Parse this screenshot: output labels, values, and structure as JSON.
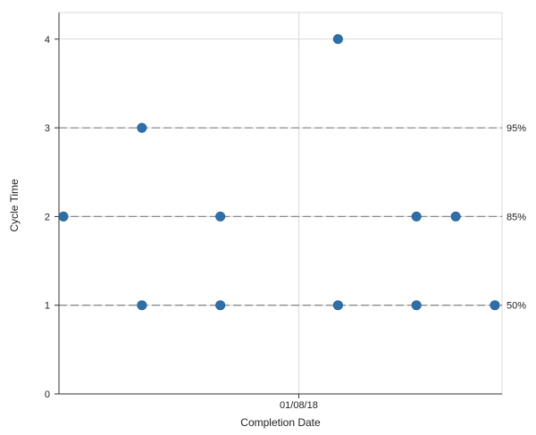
{
  "chart_data": {
    "type": "scatter",
    "title": "",
    "xlabel": "Completion Date",
    "ylabel": "Cycle Time",
    "x_scale": "date (days)",
    "xlim": [
      "2018-01-02",
      "2018-01-13"
    ],
    "ylim": [
      0,
      4.3
    ],
    "y_ticks": [
      "0",
      "1",
      "2",
      "3",
      "4"
    ],
    "x_ticks": [
      {
        "label": "01/08/18",
        "value": "2018-01-08"
      }
    ],
    "grid": true,
    "points": [
      {
        "x": "2018-01-02",
        "y": 2
      },
      {
        "x": "2018-01-04",
        "y": 3
      },
      {
        "x": "2018-01-04",
        "y": 1
      },
      {
        "x": "2018-01-06",
        "y": 2
      },
      {
        "x": "2018-01-06",
        "y": 1
      },
      {
        "x": "2018-01-09",
        "y": 4
      },
      {
        "x": "2018-01-09",
        "y": 1
      },
      {
        "x": "2018-01-11",
        "y": 2
      },
      {
        "x": "2018-01-11",
        "y": 1
      },
      {
        "x": "2018-01-12",
        "y": 2
      },
      {
        "x": "2018-01-13",
        "y": 1
      }
    ],
    "percentile_lines": [
      {
        "label": "95%",
        "y": 3
      },
      {
        "label": "85%",
        "y": 2
      },
      {
        "label": "50%",
        "y": 1
      }
    ],
    "colors": {
      "point": "#2e6fa8",
      "percentile_line": "#8c8c8c",
      "grid": "#d9d9d9",
      "axis": "#333333"
    }
  }
}
